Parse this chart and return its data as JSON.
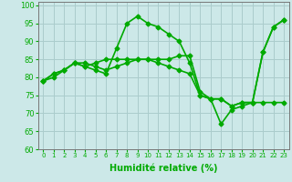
{
  "xlabel": "Humidité relative (%)",
  "background_color": "#cce8e8",
  "grid_color": "#aacccc",
  "line_color": "#00aa00",
  "xlim": [
    -0.5,
    23.5
  ],
  "ylim": [
    60,
    101
  ],
  "yticks": [
    60,
    65,
    70,
    75,
    80,
    85,
    90,
    95,
    100
  ],
  "xticks": [
    0,
    1,
    2,
    3,
    4,
    5,
    6,
    7,
    8,
    9,
    10,
    11,
    12,
    13,
    14,
    15,
    16,
    17,
    18,
    19,
    20,
    21,
    22,
    23
  ],
  "series": [
    [
      79,
      81,
      82,
      84,
      83,
      82,
      81,
      88,
      95,
      97,
      95,
      94,
      92,
      90,
      84,
      75,
      74,
      67,
      71,
      72,
      73,
      87,
      94,
      96
    ],
    [
      79,
      81,
      82,
      84,
      83,
      84,
      85,
      85,
      85,
      85,
      85,
      85,
      85,
      86,
      86,
      76,
      74,
      74,
      72,
      73,
      73,
      87,
      94,
      96
    ],
    [
      79,
      80,
      82,
      84,
      84,
      83,
      82,
      83,
      84,
      85,
      85,
      84,
      83,
      82,
      81,
      75,
      74,
      74,
      72,
      73,
      73,
      73,
      73,
      73
    ]
  ],
  "marker": "D",
  "markersize": 2.5,
  "linewidth": 1.2,
  "tick_color": "#00aa00",
  "xlabel_fontsize": 7,
  "xlabel_bold": true,
  "xtick_fontsize": 5,
  "ytick_fontsize": 6
}
